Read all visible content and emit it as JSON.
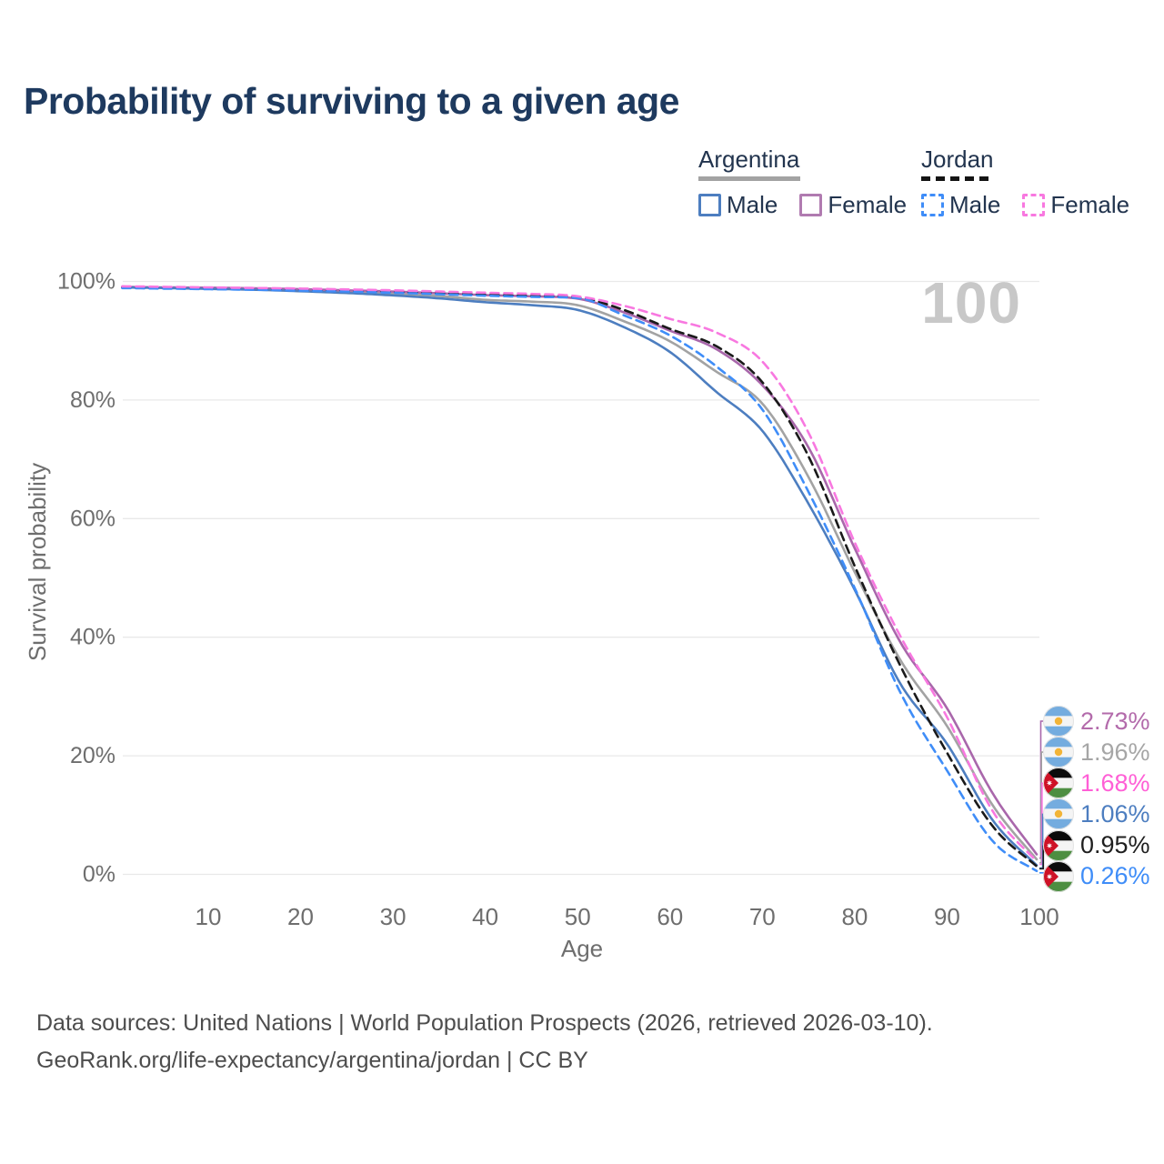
{
  "title": "Probability of surviving to a given age",
  "watermark": "100",
  "legend": {
    "groups": [
      {
        "country": "Argentina",
        "dashed": false,
        "underline_color": "#a3a3a3",
        "items": [
          {
            "label": "Male",
            "color": "#4d7ec0",
            "dashed": false
          },
          {
            "label": "Female",
            "color": "#b07bb0",
            "dashed": false
          }
        ]
      },
      {
        "country": "Jordan",
        "dashed": true,
        "underline_color": "#141414",
        "items": [
          {
            "label": "Male",
            "color": "#3f8df8",
            "dashed": true
          },
          {
            "label": "Female",
            "color": "#f878e0",
            "dashed": true
          }
        ]
      }
    ]
  },
  "chart_data": {
    "type": "line",
    "title": "Probability of surviving to a given age",
    "xlabel": "Age",
    "ylabel": "Survival probability",
    "xlim": [
      0,
      100
    ],
    "ylim": [
      0,
      100
    ],
    "x_ticks": [
      10,
      20,
      30,
      40,
      50,
      60,
      70,
      80,
      90,
      100
    ],
    "y_ticks": [
      {
        "pct": 100,
        "label": "100%"
      },
      {
        "pct": 80,
        "label": "80%"
      },
      {
        "pct": 60,
        "label": "60%"
      },
      {
        "pct": 40,
        "label": "40%"
      },
      {
        "pct": 20,
        "label": "20%"
      },
      {
        "pct": 0,
        "label": "0%"
      }
    ],
    "grid": "horizontal",
    "legend_position": "top-right",
    "ages": [
      0,
      5,
      10,
      15,
      20,
      25,
      30,
      35,
      40,
      45,
      50,
      55,
      60,
      65,
      70,
      75,
      80,
      85,
      90,
      95,
      100
    ],
    "series": [
      {
        "name": "Argentina (both sexes)",
        "country": "Argentina",
        "sex": "total",
        "line": "solid",
        "color": "#a3a3a3",
        "values": [
          99.05,
          98.95,
          98.85,
          98.7,
          98.5,
          98.25,
          97.95,
          97.55,
          96.9,
          96.6,
          96.0,
          93.3,
          89.9,
          84.8,
          79.4,
          67.0,
          51.0,
          36.0,
          25.0,
          11.5,
          1.96
        ]
      },
      {
        "name": "Argentina Female",
        "country": "Argentina",
        "sex": "female",
        "line": "solid",
        "color": "#a967ab",
        "values": [
          99.1,
          99.0,
          98.95,
          98.85,
          98.7,
          98.5,
          98.3,
          98.0,
          97.7,
          97.5,
          97.1,
          94.8,
          91.7,
          88.6,
          82.5,
          72.0,
          55.0,
          39.0,
          28.0,
          13.5,
          2.73
        ]
      },
      {
        "name": "Argentina Male",
        "country": "Argentina",
        "sex": "male",
        "line": "solid",
        "color": "#4d7ec0",
        "values": [
          99.0,
          98.9,
          98.75,
          98.6,
          98.35,
          98.05,
          97.65,
          97.15,
          96.5,
          96.0,
          95.2,
          92.3,
          88.1,
          81.4,
          74.8,
          62.5,
          48.0,
          32.0,
          22.0,
          9.0,
          1.06
        ]
      },
      {
        "name": "Jordan (both sexes)",
        "country": "Jordan",
        "sex": "total",
        "line": "dashed",
        "color": "#1a1a1a",
        "values": [
          99.0,
          98.9,
          98.8,
          98.7,
          98.55,
          98.4,
          98.2,
          98.0,
          97.75,
          97.55,
          97.3,
          95.2,
          92.0,
          89.1,
          83.0,
          70.5,
          52.0,
          35.0,
          20.5,
          8.0,
          0.95
        ]
      },
      {
        "name": "Jordan Male",
        "country": "Jordan",
        "sex": "male",
        "line": "dashed",
        "color": "#3f8df8",
        "values": [
          98.9,
          98.8,
          98.7,
          98.6,
          98.45,
          98.3,
          98.1,
          97.85,
          97.6,
          97.4,
          97.2,
          94.3,
          90.9,
          85.7,
          78.4,
          64.5,
          48.3,
          30.5,
          17.5,
          5.5,
          0.26
        ]
      },
      {
        "name": "Jordan Female",
        "country": "Jordan",
        "sex": "female",
        "line": "dashed",
        "color": "#f878e0",
        "values": [
          99.2,
          99.1,
          99.0,
          98.9,
          98.8,
          98.65,
          98.5,
          98.3,
          98.1,
          97.9,
          97.5,
          95.9,
          93.7,
          91.4,
          86.5,
          74.5,
          56.0,
          40.0,
          26.5,
          10.5,
          1.68
        ]
      }
    ],
    "end_labels": [
      {
        "flag": "argentina",
        "label": "2.73%",
        "num": 2.73,
        "color": "#b36bab",
        "series": "Argentina Female"
      },
      {
        "flag": "argentina",
        "label": "1.96%",
        "num": 1.96,
        "color": "#a6a6a6",
        "series": "Argentina (both sexes)"
      },
      {
        "flag": "jordan",
        "label": "1.68%",
        "num": 1.68,
        "color": "#ff5fd6",
        "series": "Jordan Female"
      },
      {
        "flag": "argentina",
        "label": "1.06%",
        "num": 1.06,
        "color": "#4d7ec0",
        "series": "Argentina Male"
      },
      {
        "flag": "jordan",
        "label": "0.95%",
        "num": 0.95,
        "color": "#1f1f1f",
        "series": "Jordan (both sexes)"
      },
      {
        "flag": "jordan",
        "label": "0.26%",
        "num": 0.26,
        "color": "#3f8df8",
        "series": "Jordan Male"
      }
    ]
  },
  "footer": {
    "line1": "Data sources: United Nations | World Population Prospects (2026, retrieved 2026-03-10).",
    "line2": "GeoRank.org/life-expectancy/argentina/jordan | CC BY"
  }
}
